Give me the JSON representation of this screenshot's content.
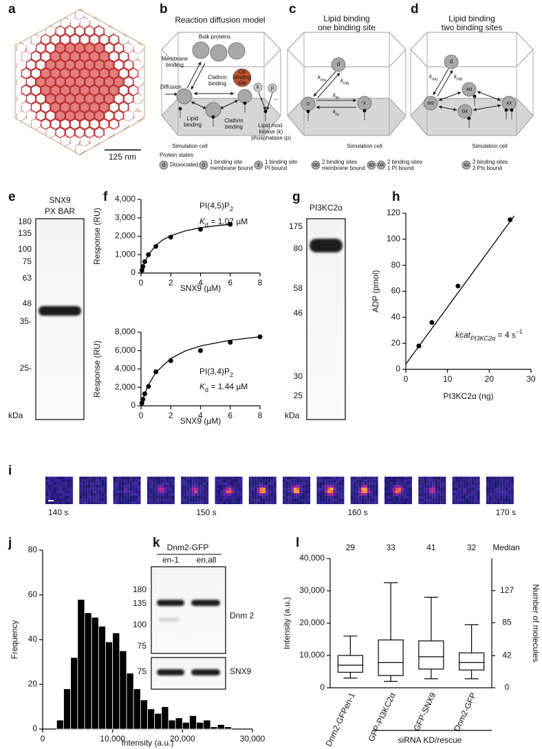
{
  "panel_labels": [
    "a",
    "b",
    "c",
    "d",
    "e",
    "f",
    "g",
    "h",
    "i",
    "j",
    "k",
    "l"
  ],
  "a": {
    "scale_bar": "125 nm"
  },
  "b": {
    "title": "Reaction diffusion model",
    "bulk": "Bulk proteins",
    "membrane_binding": [
      "Membrane",
      "binding"
    ],
    "diffusion": "Diffusion",
    "clathrin_binding_top": [
      "Clathrin",
      "binding"
    ],
    "ctr": [
      "Ctr",
      "binding",
      "site"
    ],
    "lipid_binding": [
      "Lipid",
      "binding"
    ],
    "clathrin_binding_bottom": [
      "Clathrin",
      "binding"
    ],
    "lipid_mod": [
      "Lipid mod.",
      "kinase (k)",
      "phosphatase (p)"
    ],
    "k": "k",
    "p": "p",
    "plus": "+",
    "minus": "−",
    "caption": "Simulation cell"
  },
  "c": {
    "title": [
      "Lipid binding",
      "one binding site"
    ],
    "nodes": [
      "d",
      "o",
      "x"
    ],
    "rates": [
      [
        "k",
        "mu"
      ],
      [
        "k",
        "mb"
      ],
      [
        "k",
        "lb"
      ],
      [
        "k",
        "lu"
      ]
    ],
    "caption": "Simulation cell"
  },
  "d": {
    "title": [
      "Lipid binding",
      "two binding sites"
    ],
    "nodes": [
      "d",
      "oo",
      "xo",
      "ox",
      "xx"
    ],
    "rates": [
      [
        "k",
        "mu"
      ],
      [
        "k",
        "mb"
      ]
    ],
    "caption": "Simulation cell"
  },
  "legend": {
    "title": "Protein states:",
    "items": [
      {
        "symbol": [
          "d"
        ],
        "text": [
          "Dissociated"
        ]
      },
      {
        "symbol": [
          "o"
        ],
        "text": [
          "1 binding site",
          "membrane bound"
        ]
      },
      {
        "symbol": [
          "x"
        ],
        "text": [
          "1 binding site",
          "PI bound"
        ]
      },
      {
        "symbol": [
          "oo"
        ],
        "text": [
          "2 binding sites",
          "membrane bound"
        ]
      },
      {
        "symbol": [
          "xo",
          "ox"
        ],
        "text": [
          "2 binding sites",
          "1 PI bound"
        ]
      },
      {
        "symbol": [
          "xx"
        ],
        "text": [
          "2 binding sites",
          "2 PIs bound"
        ]
      }
    ]
  },
  "e": {
    "title": [
      "SNX9",
      "PX BAR"
    ],
    "markers": [
      "180",
      "135",
      "100",
      "75",
      "63",
      "48",
      "35-",
      "25-"
    ],
    "unit": "kDa"
  },
  "g": {
    "title": "PI3KC2α",
    "markers": [
      "175",
      "80",
      "58",
      "46",
      "30",
      "25"
    ],
    "unit": "kDa"
  },
  "k": {
    "title": "Dnm2-GFP",
    "lanes": [
      "en-1",
      "en,all"
    ],
    "markers_top": [
      "180",
      "135",
      "100",
      "75"
    ],
    "markers_bottom": [
      "75"
    ],
    "band_top": "Dnm 2",
    "band_bottom": "SNX9"
  },
  "i": {
    "time_labels": [
      "140 s",
      "150 s",
      "160 s",
      "170 s"
    ],
    "frame_intensity": [
      0.05,
      0.08,
      0.15,
      0.45,
      0.5,
      0.6,
      0.75,
      0.85,
      0.95,
      1.0,
      0.8,
      0.4,
      0.1,
      0.05
    ]
  },
  "chart_data": [
    {
      "type": "scatter",
      "x": [
        0.0625,
        0.125,
        0.25,
        0.5,
        1,
        2,
        4,
        6
      ],
      "values": [
        150,
        350,
        620,
        1000,
        1450,
        1950,
        2380,
        2650
      ],
      "fit_x": [
        0,
        0.25,
        0.5,
        1,
        1.5,
        2,
        3,
        4,
        5,
        6
      ],
      "fit_values": [
        0,
        592,
        996,
        1508,
        1820,
        2031,
        2300,
        2462,
        2570,
        2648
      ],
      "xlabel": "SNX9 (µM)",
      "ylabel": "Response (RU)",
      "annotations": [
        [
          "PI(4,5)P",
          "2"
        ],
        [
          "K",
          "d",
          " = 1.07 µM"
        ]
      ],
      "xlim": [
        0,
        8
      ],
      "ylim": [
        0,
        4000
      ],
      "xticks": [
        0,
        2,
        4,
        6,
        8
      ],
      "yticks": [
        0,
        {
          "value": 1000,
          "label": "1,000"
        },
        {
          "value": 2000,
          "label": "2,000"
        },
        {
          "value": 3000,
          "label": "3,000"
        },
        {
          "value": 4000,
          "label": "4,000"
        }
      ],
      "color": "#000000"
    },
    {
      "type": "scatter",
      "x": [
        0.0625,
        0.125,
        0.25,
        0.5,
        1,
        2,
        4,
        6,
        8
      ],
      "values": [
        300,
        700,
        1300,
        2100,
        3700,
        4900,
        6000,
        6900,
        7500
      ],
      "fit_x": [
        0,
        0.25,
        0.5,
        1,
        2,
        3,
        4,
        6,
        8
      ],
      "fit_values": [
        0,
        1309,
        2281,
        3627,
        5146,
        5980,
        6506,
        7134,
        7500
      ],
      "xlabel": "SNX9 (µM)",
      "ylabel": "Response (RU)",
      "annotations": [
        [
          "PI(3,4)P",
          "2"
        ],
        [
          "K",
          "d",
          " = 1.44 µM"
        ]
      ],
      "xlim": [
        0,
        8
      ],
      "ylim": [
        0,
        8000
      ],
      "xticks": [
        0,
        2,
        4,
        6,
        8
      ],
      "yticks": [
        0,
        {
          "value": 2000,
          "label": "2,000"
        },
        {
          "value": 4000,
          "label": "4,000"
        },
        {
          "value": 6000,
          "label": "6,000"
        },
        {
          "value": 8000,
          "label": "8,000"
        }
      ],
      "color": "#000000"
    },
    {
      "type": "scatter",
      "x": [
        3.125,
        6.25,
        12.5,
        25
      ],
      "values": [
        18,
        36,
        64,
        115
      ],
      "fit_x": [
        0,
        26
      ],
      "fit_values": [
        4,
        118
      ],
      "xlabel": "PI3KC2α (ng)",
      "ylabel": "ADP (pmol)",
      "annotations": [
        [
          "kcat",
          "PI3KC2α",
          " = 4 s",
          "−1"
        ]
      ],
      "xlim": [
        0,
        30
      ],
      "ylim": [
        0,
        120
      ],
      "xticks": [
        0,
        10,
        20,
        30
      ],
      "yticks": [
        0,
        20,
        40,
        60,
        80,
        100,
        120
      ],
      "color": "#000000"
    },
    {
      "type": "histogram",
      "bins": [
        2000,
        3000,
        4000,
        5000,
        6000,
        7000,
        8000,
        9000,
        10000,
        11000,
        12000,
        13000,
        14000,
        15000,
        16000,
        17000,
        18000,
        19000,
        20000,
        21000,
        22000,
        23000,
        24000,
        25000,
        26000,
        27000
      ],
      "values": [
        4,
        18,
        32,
        58,
        52,
        50,
        46,
        39,
        43,
        35,
        25,
        18,
        13,
        9,
        7,
        10,
        4,
        5,
        3,
        6,
        3,
        4,
        1,
        2,
        1
      ],
      "xlabel": "Intensity (a.u.)",
      "ylabel": "Frequency",
      "xlim": [
        0,
        30000
      ],
      "ylim": [
        0,
        80
      ],
      "xticks": [
        0,
        {
          "value": 10000,
          "label": "10,000"
        },
        {
          "value": 20000,
          "label": "20,000"
        },
        {
          "value": 30000,
          "label": "30,000"
        }
      ],
      "yticks": [
        0,
        20,
        40,
        60,
        80
      ],
      "color": "#000000"
    },
    {
      "type": "box",
      "categories": [
        "Dnm2-GFPen-1",
        "GFP-PI3KC2α",
        "GFP-SNX9",
        "Dnm2-GFP"
      ],
      "whisker_low": [
        3000,
        2000,
        2800,
        2800
      ],
      "q1": [
        4800,
        3800,
        5800,
        5500
      ],
      "median": [
        7000,
        7800,
        9600,
        7800
      ],
      "q3": [
        10000,
        14800,
        14500,
        10800
      ],
      "whisker_high": [
        16000,
        32500,
        28000,
        19500
      ],
      "median_title": "Median",
      "median_counts": [
        29,
        33,
        41,
        32
      ],
      "ylabel": "Intensity (a.u.)",
      "y2label": "Number of molecules",
      "group_label": "siRNA KD/rescue",
      "ylim": [
        0,
        40000
      ],
      "yticks": [
        0,
        {
          "value": 10000,
          "label": "10,000"
        },
        {
          "value": 20000,
          "label": "20,000"
        },
        {
          "value": 30000,
          "label": "30,000"
        },
        {
          "value": 40000,
          "label": "40,000"
        }
      ],
      "y2lim": [
        0,
        169
      ],
      "y2ticks": [
        0,
        42,
        85,
        127
      ]
    }
  ]
}
